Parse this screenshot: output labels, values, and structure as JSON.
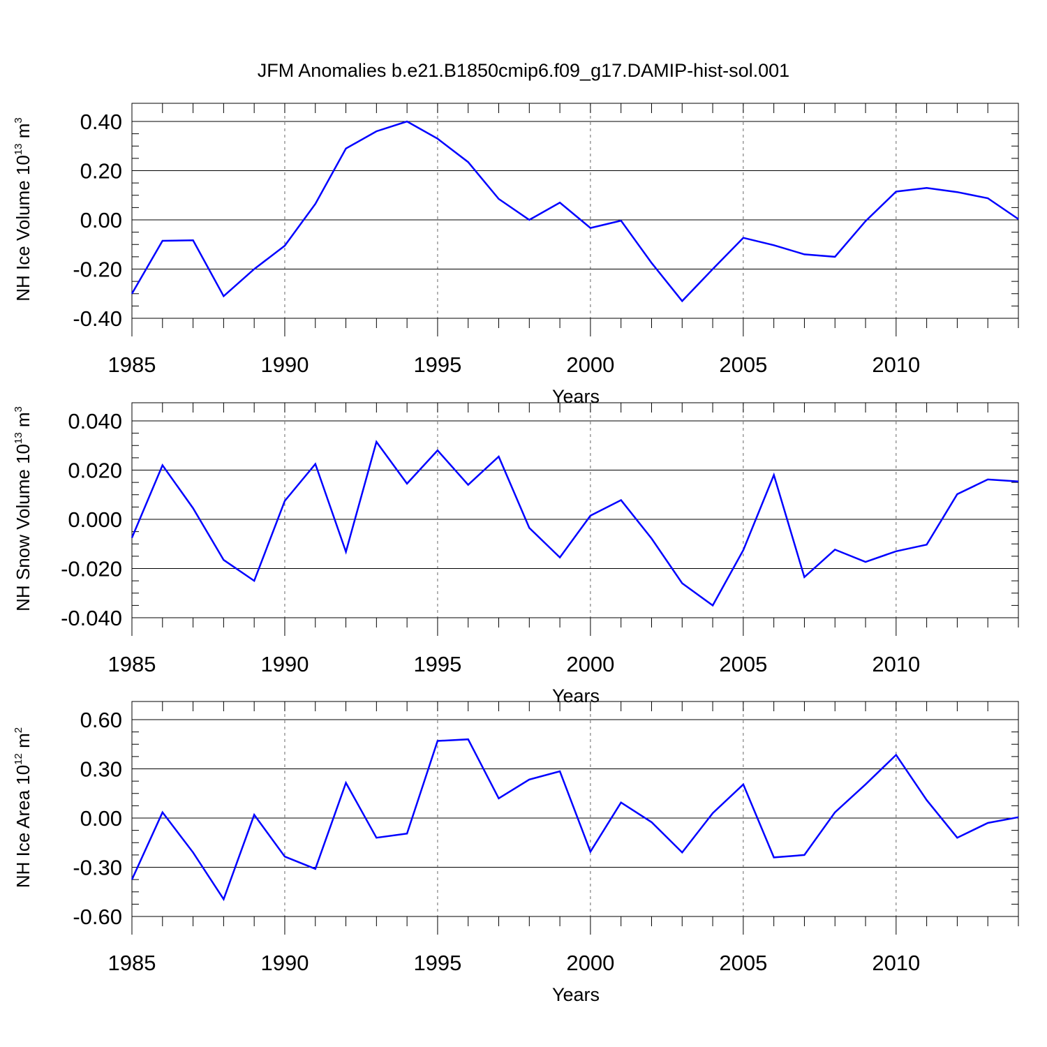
{
  "title": "JFM Anomalies b.e21.B1850cmip6.f09_g17.DAMIP-hist-sol.001",
  "colors": {
    "line": "#0000ff",
    "axis": "#000000",
    "grid": "#666666"
  },
  "chart_data": [
    {
      "type": "line",
      "ylabel": {
        "text": "NH Ice Volume 10",
        "sup": "13",
        "unit": " m",
        "unit_sup": "3"
      },
      "xlabel": "Years",
      "xlim": [
        1985,
        2014
      ],
      "ylim": [
        -0.4,
        0.4
      ],
      "xticks": [
        1985,
        1990,
        1995,
        2000,
        2005,
        2010
      ],
      "xtick_labels": [
        "1985",
        "1990",
        "1995",
        "2000",
        "2005",
        "2010"
      ],
      "yticks": [
        0.4,
        0.2,
        0.0,
        -0.2,
        -0.4
      ],
      "ytick_labels": [
        "0.40",
        "0.20",
        "0.00",
        "-0.20",
        "-0.40"
      ],
      "grid_x": [
        1990,
        1995,
        2000,
        2005,
        2010
      ],
      "x": [
        1985,
        1986,
        1987,
        1988,
        1989,
        1990,
        1991,
        1992,
        1993,
        1994,
        1995,
        1996,
        1997,
        1998,
        1999,
        2000,
        2001,
        2002,
        2003,
        2004,
        2005,
        2006,
        2007,
        2008,
        2009,
        2010,
        2011,
        2012,
        2013,
        2014
      ],
      "series": [
        {
          "name": "NH Ice Volume",
          "values": [
            -0.3,
            -0.085,
            -0.083,
            -0.31,
            -0.2,
            -0.105,
            0.065,
            0.29,
            0.36,
            0.4,
            0.33,
            0.235,
            0.085,
            0.0,
            0.07,
            -0.033,
            -0.003,
            -0.175,
            -0.33,
            -0.2,
            -0.073,
            -0.103,
            -0.14,
            -0.15,
            -0.005,
            0.115,
            0.13,
            0.113,
            0.088,
            0.003
          ]
        }
      ]
    },
    {
      "type": "line",
      "ylabel": {
        "text": "NH Snow Volume 10",
        "sup": "13",
        "unit": " m",
        "unit_sup": "3"
      },
      "xlabel": "Years",
      "xlim": [
        1985,
        2014
      ],
      "ylim": [
        -0.04,
        0.04
      ],
      "xticks": [
        1985,
        1990,
        1995,
        2000,
        2005,
        2010
      ],
      "xtick_labels": [
        "1985",
        "1990",
        "1995",
        "2000",
        "2005",
        "2010"
      ],
      "yticks": [
        0.04,
        0.02,
        0.0,
        -0.02,
        -0.04
      ],
      "ytick_labels": [
        "0.040",
        "0.020",
        "0.000",
        "-0.020",
        "-0.040"
      ],
      "grid_x": [
        1990,
        1995,
        2000,
        2005,
        2010
      ],
      "x": [
        1985,
        1986,
        1987,
        1988,
        1989,
        1990,
        1991,
        1992,
        1993,
        1994,
        1995,
        1996,
        1997,
        1998,
        1999,
        2000,
        2001,
        2002,
        2003,
        2004,
        2005,
        2006,
        2007,
        2008,
        2009,
        2010,
        2011,
        2012,
        2013,
        2014
      ],
      "series": [
        {
          "name": "NH Snow Volume",
          "values": [
            -0.0075,
            0.022,
            0.0045,
            -0.0165,
            -0.025,
            0.0075,
            0.0225,
            -0.0132,
            0.0315,
            0.0145,
            0.028,
            0.014,
            0.0255,
            -0.0035,
            -0.0155,
            0.0015,
            0.0078,
            -0.0078,
            -0.026,
            -0.035,
            -0.0125,
            0.018,
            -0.0235,
            -0.0123,
            -0.0173,
            -0.013,
            -0.0103,
            0.0102,
            0.0162,
            0.0154
          ]
        }
      ]
    },
    {
      "type": "line",
      "ylabel": {
        "text": "NH Ice Area 10",
        "sup": "12",
        "unit": " m",
        "unit_sup": "2"
      },
      "xlabel": "Years",
      "xlim": [
        1985,
        2014
      ],
      "ylim": [
        -0.6,
        0.6
      ],
      "xticks": [
        1985,
        1990,
        1995,
        2000,
        2005,
        2010
      ],
      "xtick_labels": [
        "1985",
        "1990",
        "1995",
        "2000",
        "2005",
        "2010"
      ],
      "yticks": [
        0.6,
        0.3,
        0.0,
        -0.3,
        -0.6
      ],
      "ytick_labels": [
        "0.60",
        "0.30",
        "0.00",
        "-0.30",
        "-0.60"
      ],
      "grid_x": [
        1990,
        1995,
        2000,
        2005,
        2010
      ],
      "x": [
        1985,
        1986,
        1987,
        1988,
        1989,
        1990,
        1991,
        1992,
        1993,
        1994,
        1995,
        1996,
        1997,
        1998,
        1999,
        2000,
        2001,
        2002,
        2003,
        2004,
        2005,
        2006,
        2007,
        2008,
        2009,
        2010,
        2011,
        2012,
        2013,
        2014
      ],
      "series": [
        {
          "name": "NH Ice Area",
          "values": [
            -0.375,
            0.035,
            -0.21,
            -0.495,
            0.02,
            -0.235,
            -0.31,
            0.215,
            -0.12,
            -0.095,
            0.47,
            0.48,
            0.12,
            0.235,
            0.285,
            -0.205,
            0.095,
            -0.025,
            -0.21,
            0.03,
            0.205,
            -0.24,
            -0.225,
            0.035,
            0.205,
            0.385,
            0.11,
            -0.12,
            -0.03,
            0.005
          ]
        }
      ]
    }
  ]
}
